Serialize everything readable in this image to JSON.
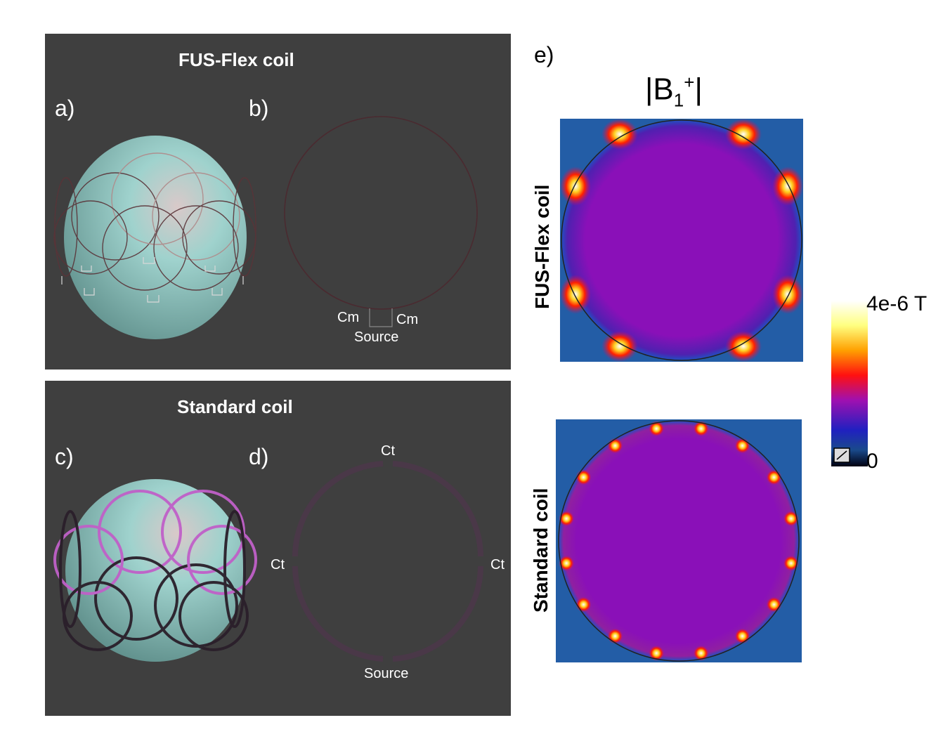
{
  "top_panel": {
    "title": "FUS-Flex coil",
    "label_a": "a)",
    "label_b": "b)",
    "cm_left": "Cm",
    "cm_right": "Cm",
    "source": "Source"
  },
  "bottom_panel": {
    "title": "Standard coil",
    "label_c": "c)",
    "label_d": "d)",
    "ct_top": "Ct",
    "ct_left": "Ct",
    "ct_right": "Ct",
    "source": "Source"
  },
  "field_panel": {
    "label_e": "e)",
    "quantity": "|B",
    "quantity_sub": "1",
    "quantity_sup": "+",
    "quantity_end": "|",
    "row_top": "FUS-Flex coil",
    "row_bottom": "Standard coil",
    "colorbar_max": "4e-6 T",
    "colorbar_min": "0"
  },
  "colors": {
    "panel_bg": "#3f3f3f",
    "phantom": "#8fc9c5",
    "flex_wire": "#4a2a30",
    "standard_wire": "#c060c8",
    "field_bg": "#8a10b8"
  }
}
